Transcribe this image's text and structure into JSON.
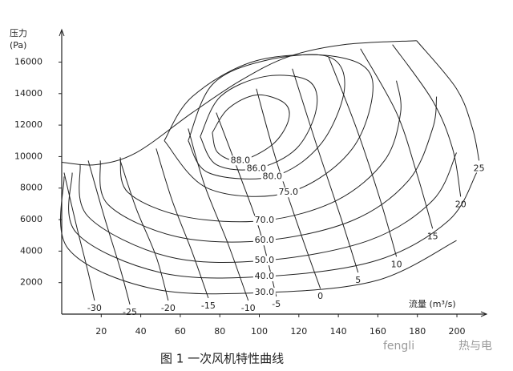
{
  "chart_data": {
    "type": "line",
    "y_label_line1": "压力",
    "y_label_line2": "(Pa)",
    "x_label": "流量 (m³/s)",
    "caption": "图 1   一次风机特性曲线",
    "watermark_left": "fengli",
    "watermark_right": "热与电",
    "xlim": [
      0,
      215
    ],
    "ylim": [
      0,
      17500
    ],
    "xticks": [
      20,
      40,
      60,
      80,
      100,
      120,
      140,
      160,
      180,
      200
    ],
    "yticks": [
      2000,
      4000,
      6000,
      8000,
      10000,
      12000,
      14000,
      16000
    ],
    "grid": false,
    "color": "#222222",
    "series": [
      {
        "x": [
          0,
          17.4,
          37.7,
          66.1,
          90.4,
          114.7,
          143.1,
          179.6
        ],
        "values": [
          9640,
          9490,
          10250,
          12790,
          14820,
          16340,
          17110,
          17360
        ]
      },
      {
        "name": "88.0",
        "x": [
          76.2,
          84.3,
          98.5,
          112.7,
          114.7,
          106.6,
          90.4,
          79.0,
          76.2
        ],
        "values": [
          11520,
          13050,
          13910,
          13400,
          12280,
          10760,
          9750,
          10250,
          11520
        ]
      },
      {
        "name": "86.0",
        "x": [
          70.1,
          80.3,
          102.6,
          124.8,
          128.9,
          118.8,
          98.5,
          78.2,
          70.1
        ],
        "values": [
          11270,
          13810,
          15080,
          14820,
          13050,
          10510,
          9240,
          9490,
          11270
        ]
      },
      {
        "name": "80.0",
        "x": [
          64.0,
          76.2,
          102.6,
          135.0,
          143.1,
          130.9,
          106.6,
          74.2,
          64.0
        ],
        "values": [
          11010,
          14570,
          16090,
          16340,
          14310,
          10760,
          8730,
          8980,
          11010
        ]
      },
      {
        "name": "75.0",
        "x": [
          51.9,
          66.1,
          98.5,
          139.0,
          157.3,
          147.1,
          114.7,
          74.2,
          51.9
        ],
        "values": [
          11010,
          13810,
          16090,
          16340,
          14820,
          10510,
          7720,
          7970,
          11010
        ]
      },
      {
        "name": "70.0",
        "x": [
          29.6,
          33.6,
          62.0,
          102.6,
          139.0,
          163.4,
          171.5,
          169.4
        ],
        "values": [
          9950,
          7720,
          6190,
          5940,
          7210,
          9750,
          12790,
          14820
        ]
      },
      {
        "name": "60.0",
        "x": [
          19.5,
          23.5,
          58.0,
          102.6,
          147.1,
          175.5,
          187.7,
          189.7
        ],
        "values": [
          9750,
          6950,
          4920,
          4670,
          5940,
          8480,
          11780,
          13810
        ]
      },
      {
        "name": "50.0",
        "x": [
          9.3,
          13.4,
          53.9,
          102.6,
          155.3,
          187.7,
          199.8
        ],
        "values": [
          9490,
          6190,
          3650,
          3400,
          4670,
          7210,
          10250
        ]
      },
      {
        "name": "40.0",
        "x": [
          5.3,
          7.3,
          49.9,
          102.6,
          159.3,
          195.8,
          210.0
        ],
        "values": [
          8980,
          5180,
          2640,
          2390,
          3400,
          5940,
          8980
        ]
      },
      {
        "name": "30.0",
        "x": [
          1.2,
          3.2,
          45.8,
          102.6,
          159.3,
          199.8
        ],
        "values": [
          8730,
          4160,
          1620,
          1370,
          2130,
          4670
        ]
      },
      {
        "name": "-30",
        "x": [
          1.2,
          7.3,
          13.4,
          16.6
        ],
        "values": [
          8980,
          5690,
          2640,
          860
        ]
      },
      {
        "name": "-25",
        "x": [
          13.4,
          21.5,
          29.6,
          34.5
        ],
        "values": [
          9750,
          6190,
          2890,
          610
        ]
      },
      {
        "name": "-20",
        "x": [
          29.6,
          37.7,
          47.8,
          53.9
        ],
        "values": [
          9750,
          6700,
          3650,
          860
        ]
      },
      {
        "name": "-15",
        "x": [
          47.8,
          55.9,
          66.1,
          74.2
        ],
        "values": [
          10510,
          7210,
          3910,
          1020
        ]
      },
      {
        "name": "-10",
        "x": [
          64.0,
          72.2,
          84.3,
          94.4
        ],
        "values": [
          11780,
          8220,
          4420,
          860
        ]
      },
      {
        "name": "-5",
        "x": [
          78.2,
          90.4,
          100.5,
          108.6
        ],
        "values": [
          12790,
          8730,
          5180,
          1120
        ]
      },
      {
        "name": "0",
        "x": [
          98.5,
          108.6,
          120.8,
          130.9
        ],
        "values": [
          14310,
          9750,
          5180,
          1620
        ]
      },
      {
        "name": "5",
        "x": [
          116.7,
          128.9,
          141.1,
          150.0
        ],
        "values": [
          15580,
          10760,
          6190,
          2640
        ]
      },
      {
        "name": "10",
        "x": [
          135.0,
          149.2,
          161.3,
          169.4
        ],
        "values": [
          16340,
          11780,
          7210,
          3650
        ]
      },
      {
        "name": "15",
        "x": [
          151.2,
          169.4,
          179.6,
          187.7
        ],
        "values": [
          16850,
          12790,
          8980,
          5430
        ]
      },
      {
        "name": "20",
        "x": [
          167.4,
          187.7,
          197.8,
          201.9
        ],
        "values": [
          17110,
          13550,
          10510,
          7460
        ]
      },
      {
        "name": "25",
        "x": [
          179.6,
          199.8,
          207.9,
          211.2
        ],
        "values": [
          17360,
          14310,
          11780,
          9750
        ]
      }
    ]
  }
}
